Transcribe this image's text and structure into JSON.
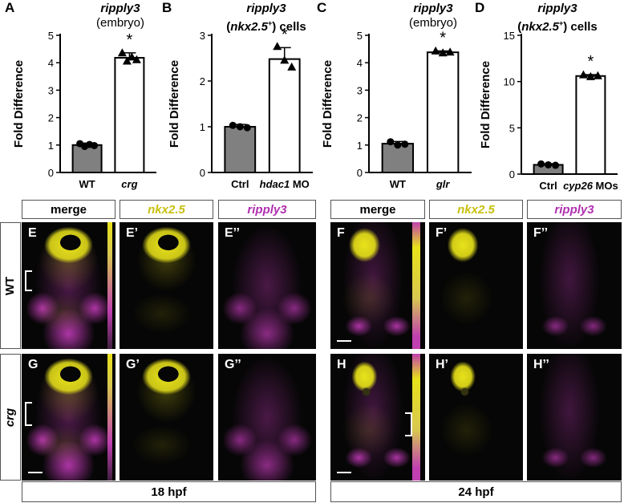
{
  "panels_top": [
    {
      "letter": "A",
      "title_gene": "ripply3",
      "title_sub": "(embryo)"
    },
    {
      "letter": "B",
      "title_gene": "ripply3",
      "title_sub_pre": "(",
      "title_sub_it": "nkx2.5",
      "title_sup": "+",
      "title_sub_post": ") cells"
    },
    {
      "letter": "C",
      "title_gene": "ripply3",
      "title_sub": "(embryo)"
    },
    {
      "letter": "D",
      "title_gene": "ripply3",
      "title_sub_pre": "(",
      "title_sub_it": "nkx2.5",
      "title_sup": "+",
      "title_sub_post": ") cells"
    }
  ],
  "ylabel": "Fold Difference",
  "significance_mark": "*",
  "chart_data": [
    {
      "type": "bar",
      "panel": "A",
      "categories": [
        "WT",
        "crg"
      ],
      "values": [
        1.0,
        4.18
      ],
      "error": [
        0.07,
        0.18
      ],
      "points": [
        [
          1.05,
          0.95,
          1.02,
          0.98
        ],
        [
          4.35,
          4.05,
          4.2,
          4.1
        ]
      ],
      "markers": [
        "circle",
        "triangle"
      ],
      "ylim": [
        0,
        5
      ],
      "yticks": [
        0,
        1,
        2,
        3,
        4,
        5
      ],
      "colors": [
        "#808080",
        "#ffffff"
      ]
    },
    {
      "type": "bar",
      "panel": "B",
      "categories": [
        "Ctrl",
        "hdac1 MO"
      ],
      "values": [
        1.0,
        2.48
      ],
      "error": [
        0.05,
        0.25
      ],
      "points": [
        [
          1.03,
          1.0,
          0.98
        ],
        [
          2.75,
          2.45,
          2.3
        ]
      ],
      "markers": [
        "circle",
        "triangle"
      ],
      "ylim": [
        0,
        3
      ],
      "yticks": [
        0,
        1,
        2,
        3
      ],
      "colors": [
        "#808080",
        "#ffffff"
      ]
    },
    {
      "type": "bar",
      "panel": "C",
      "categories": [
        "WT",
        "glr"
      ],
      "values": [
        1.05,
        4.38
      ],
      "error": [
        0.08,
        0.05
      ],
      "points": [
        [
          1.12,
          1.0,
          1.03
        ],
        [
          4.42,
          4.35,
          4.38
        ]
      ],
      "markers": [
        "circle",
        "triangle"
      ],
      "ylim": [
        0,
        5
      ],
      "yticks": [
        0,
        1,
        2,
        3,
        4,
        5
      ],
      "colors": [
        "#808080",
        "#ffffff"
      ]
    },
    {
      "type": "bar",
      "panel": "D",
      "categories": [
        "Ctrl",
        "cyp26 MOs"
      ],
      "values": [
        1.0,
        10.6
      ],
      "error": [
        0.12,
        0.15
      ],
      "points": [
        [
          1.1,
          1.0,
          0.95
        ],
        [
          10.7,
          10.5,
          10.6
        ]
      ],
      "markers": [
        "circle",
        "triangle"
      ],
      "ylim": [
        0,
        15
      ],
      "yticks": [
        0,
        5,
        10,
        15
      ],
      "colors": [
        "#808080",
        "#ffffff"
      ]
    }
  ],
  "x_italic": {
    "crg": true,
    "glr": true,
    "hdac1": true,
    "cyp26": true
  },
  "headers_left": [
    "merge",
    "nkx2.5",
    "ripply3"
  ],
  "headers_right": [
    "merge",
    "nkx2.5",
    "ripply3"
  ],
  "row_labels": [
    "WT",
    "crg"
  ],
  "image_labels_left": [
    [
      "E",
      "E’",
      "E’’"
    ],
    [
      "G",
      "G’",
      "G’’"
    ]
  ],
  "image_labels_right": [
    [
      "F",
      "F’",
      "F’’"
    ],
    [
      "H",
      "H’",
      "H’’"
    ]
  ],
  "footer_left": "18 hpf",
  "footer_right": "24 hpf",
  "colors": {
    "yellow": "#e8e21a",
    "magenta": "#c940c0",
    "bar_gray": "#808080"
  }
}
